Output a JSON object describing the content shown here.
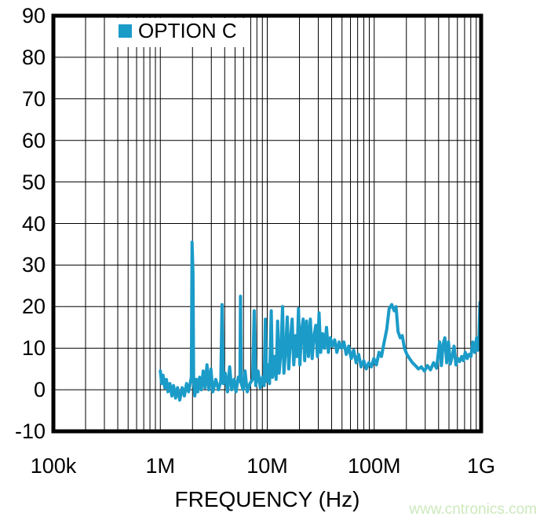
{
  "watermark": "www.cntronics.com",
  "colors": {
    "series": "#1b9bc8",
    "grid": "#000000",
    "border": "#000000",
    "text": "#000000",
    "legend_bg": "#ffffff",
    "watermark": "#cde9bd",
    "background": "#ffffff"
  },
  "chart_data": {
    "type": "line",
    "title": "",
    "xlabel": "FREQUENCY (Hz)",
    "ylabel": "",
    "x_scale": "log",
    "x_range_hz": [
      100000,
      1000000000
    ],
    "ylim": [
      -10,
      90
    ],
    "grid": "both",
    "y_ticks": [
      90,
      80,
      70,
      60,
      50,
      40,
      30,
      20,
      10,
      0,
      -10
    ],
    "x_ticks": [
      {
        "hz": 100000,
        "label": "100k"
      },
      {
        "hz": 1000000,
        "label": "1M"
      },
      {
        "hz": 10000000,
        "label": "10M"
      },
      {
        "hz": 100000000,
        "label": "100M"
      },
      {
        "hz": 1000000000,
        "label": "1G"
      }
    ],
    "legend": {
      "label": "OPTION C",
      "position": "top-left"
    },
    "series": [
      {
        "name": "OPTION C",
        "color": "#1b9bc8",
        "points_mhz_db": [
          [
            1.0,
            4.5
          ],
          [
            1.03,
            1.5
          ],
          [
            1.06,
            3.5
          ],
          [
            1.1,
            0.5
          ],
          [
            1.14,
            2.5
          ],
          [
            1.18,
            -0.5
          ],
          [
            1.23,
            1.5
          ],
          [
            1.28,
            -1.5
          ],
          [
            1.33,
            1.0
          ],
          [
            1.39,
            -2.0
          ],
          [
            1.45,
            0.5
          ],
          [
            1.52,
            -2.5
          ],
          [
            1.6,
            0.5
          ],
          [
            1.68,
            -1.5
          ],
          [
            1.76,
            1.5
          ],
          [
            1.84,
            -0.5
          ],
          [
            1.9,
            1.5
          ],
          [
            1.95,
            3.0
          ],
          [
            1.98,
            35.5
          ],
          [
            2.02,
            28.0
          ],
          [
            2.05,
            2.0
          ],
          [
            2.1,
            -1.5
          ],
          [
            2.17,
            2.5
          ],
          [
            2.24,
            -0.5
          ],
          [
            2.33,
            3.0
          ],
          [
            2.42,
            0.0
          ],
          [
            2.52,
            4.5
          ],
          [
            2.62,
            0.5
          ],
          [
            2.73,
            6.0
          ],
          [
            2.84,
            0.0
          ],
          [
            2.97,
            5.0
          ],
          [
            3.1,
            -0.5
          ],
          [
            3.3,
            2.5
          ],
          [
            3.5,
            0.0
          ],
          [
            3.68,
            2.0
          ],
          [
            3.78,
            20.5
          ],
          [
            3.88,
            1.5
          ],
          [
            4.05,
            4.0
          ],
          [
            4.25,
            -0.5
          ],
          [
            4.45,
            5.5
          ],
          [
            4.65,
            0.0
          ],
          [
            4.9,
            2.5
          ],
          [
            5.1,
            -0.5
          ],
          [
            5.35,
            3.0
          ],
          [
            5.55,
            2.0
          ],
          [
            5.62,
            22.5
          ],
          [
            5.72,
            1.5
          ],
          [
            5.95,
            0.0
          ],
          [
            6.2,
            4.5
          ],
          [
            6.5,
            -0.5
          ],
          [
            6.9,
            1.5
          ],
          [
            7.3,
            2.5
          ],
          [
            7.55,
            19.0
          ],
          [
            7.8,
            1.0
          ],
          [
            8.2,
            4.5
          ],
          [
            8.6,
            0.5
          ],
          [
            9.0,
            3.0
          ],
          [
            9.35,
            1.0
          ],
          [
            9.6,
            17.0
          ],
          [
            9.85,
            2.0
          ],
          [
            10.2,
            6.0
          ],
          [
            10.5,
            1.5
          ],
          [
            10.9,
            19.0
          ],
          [
            11.2,
            3.0
          ],
          [
            11.7,
            8.0
          ],
          [
            12.1,
            2.5
          ],
          [
            12.5,
            16.5
          ],
          [
            12.9,
            4.0
          ],
          [
            13.4,
            9.0
          ],
          [
            13.9,
            20.0
          ],
          [
            14.3,
            4.0
          ],
          [
            14.9,
            10.0
          ],
          [
            15.4,
            17.5
          ],
          [
            15.9,
            5.0
          ],
          [
            16.5,
            12.0
          ],
          [
            17.1,
            17.0
          ],
          [
            17.7,
            6.0
          ],
          [
            18.4,
            13.0
          ],
          [
            19.0,
            8.0
          ],
          [
            19.6,
            19.5
          ],
          [
            20.2,
            6.0
          ],
          [
            20.9,
            14.0
          ],
          [
            21.7,
            17.0
          ],
          [
            22.4,
            7.0
          ],
          [
            23.3,
            16.5
          ],
          [
            24.3,
            8.0
          ],
          [
            25.3,
            17.0
          ],
          [
            26.3,
            7.5
          ],
          [
            27.4,
            13.0
          ],
          [
            28.4,
            15.5
          ],
          [
            29.5,
            8.0
          ],
          [
            30.5,
            18.5
          ],
          [
            31.6,
            9.0
          ],
          [
            32.9,
            13.5
          ],
          [
            34.3,
            10.0
          ],
          [
            35.8,
            15.0
          ],
          [
            37.3,
            9.0
          ],
          [
            38.9,
            12.5
          ],
          [
            40.7,
            10.5
          ],
          [
            42.7,
            12.0
          ],
          [
            44.8,
            9.0
          ],
          [
            47.0,
            11.5
          ],
          [
            49.5,
            10.0
          ],
          [
            52.0,
            11.5
          ],
          [
            54.8,
            8.5
          ],
          [
            57.8,
            10.5
          ],
          [
            61.0,
            7.5
          ],
          [
            64.3,
            9.5
          ],
          [
            67.8,
            6.5
          ],
          [
            71.5,
            8.5
          ],
          [
            75.5,
            5.5
          ],
          [
            79.8,
            7.0
          ],
          [
            84.3,
            5.0
          ],
          [
            89.0,
            6.5
          ],
          [
            94.0,
            5.5
          ],
          [
            99.3,
            7.5
          ],
          [
            105,
            6.0
          ],
          [
            111,
            9.0
          ],
          [
            117,
            8.0
          ],
          [
            124,
            11.5
          ],
          [
            131,
            14.5
          ],
          [
            138,
            19.5
          ],
          [
            146,
            20.5
          ],
          [
            154,
            19.0
          ],
          [
            160,
            20.0
          ],
          [
            167,
            14.0
          ],
          [
            175,
            12.5
          ],
          [
            183,
            13.0
          ],
          [
            192,
            10.0
          ],
          [
            202,
            8.5
          ],
          [
            214,
            7.5
          ],
          [
            228,
            6.5
          ],
          [
            243,
            5.8
          ],
          [
            259,
            5.0
          ],
          [
            276,
            5.5
          ],
          [
            295,
            4.5
          ],
          [
            315,
            5.8
          ],
          [
            336,
            4.8
          ],
          [
            359,
            6.5
          ],
          [
            383,
            5.2
          ],
          [
            409,
            11.5
          ],
          [
            425,
            5.8
          ],
          [
            441,
            11.0
          ],
          [
            458,
            12.5
          ],
          [
            476,
            6.5
          ],
          [
            495,
            11.5
          ],
          [
            515,
            6.2
          ],
          [
            536,
            8.0
          ],
          [
            558,
            10.5
          ],
          [
            581,
            6.0
          ],
          [
            605,
            7.5
          ],
          [
            630,
            6.8
          ],
          [
            656,
            8.0
          ],
          [
            683,
            7.0
          ],
          [
            711,
            9.0
          ],
          [
            740,
            7.5
          ],
          [
            771,
            8.5
          ],
          [
            803,
            8.0
          ],
          [
            836,
            11.5
          ],
          [
            870,
            9.0
          ],
          [
            906,
            12.5
          ],
          [
            930,
            9.5
          ],
          [
            955,
            13.0
          ],
          [
            975,
            21.0
          ],
          [
            988,
            15.0
          ],
          [
            1000,
            12.0
          ]
        ]
      }
    ]
  }
}
